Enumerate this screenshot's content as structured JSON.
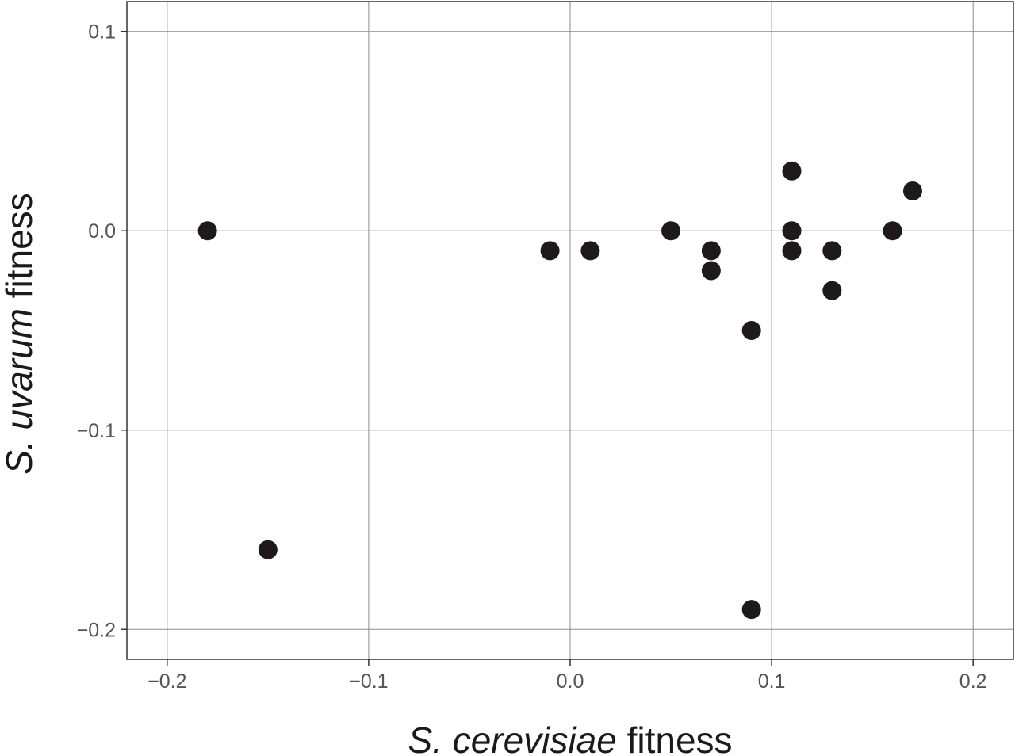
{
  "chart_data": {
    "type": "scatter",
    "title": "",
    "xlabel_italic": "S. cerevisiae",
    "xlabel_rest": "fitness",
    "ylabel_italic": "S. uvarum",
    "ylabel_rest": "fitness",
    "xlim": [
      -0.22,
      0.22
    ],
    "ylim": [
      -0.215,
      0.115
    ],
    "xticks": [
      -0.2,
      -0.1,
      0.0,
      0.1,
      0.2
    ],
    "xtick_labels": [
      "−0.2",
      "−0.1",
      "0.0",
      "0.1",
      "0.2"
    ],
    "yticks": [
      0.1,
      0.0,
      -0.1,
      -0.2
    ],
    "ytick_labels": [
      "0.1",
      "0.0",
      "−0.1",
      "−0.2"
    ],
    "grid": true,
    "points": [
      {
        "x": -0.18,
        "y": 0.0
      },
      {
        "x": -0.15,
        "y": -0.16
      },
      {
        "x": -0.01,
        "y": -0.01
      },
      {
        "x": 0.01,
        "y": -0.01
      },
      {
        "x": 0.05,
        "y": 0.0
      },
      {
        "x": 0.07,
        "y": -0.01
      },
      {
        "x": 0.07,
        "y": -0.02
      },
      {
        "x": 0.09,
        "y": -0.05
      },
      {
        "x": 0.09,
        "y": -0.19
      },
      {
        "x": 0.11,
        "y": 0.03
      },
      {
        "x": 0.11,
        "y": 0.0
      },
      {
        "x": 0.11,
        "y": -0.01
      },
      {
        "x": 0.13,
        "y": -0.01
      },
      {
        "x": 0.13,
        "y": -0.03
      },
      {
        "x": 0.16,
        "y": 0.0
      },
      {
        "x": 0.17,
        "y": 0.02
      }
    ]
  }
}
